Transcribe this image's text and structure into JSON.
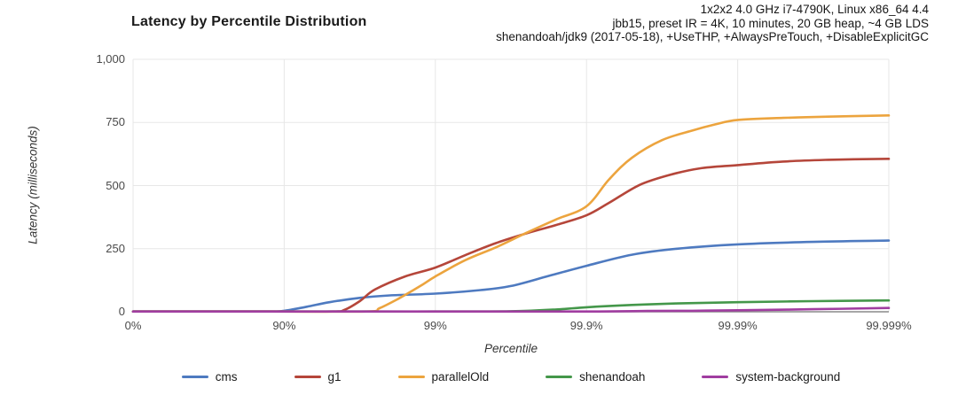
{
  "header": {
    "title": "Latency by Percentile Distribution",
    "env_lines": [
      "1x2x2 4.0 GHz i7-4790K, Linux x86_64 4.4",
      "jbb15, preset IR = 4K, 10 minutes, 20 GB heap, ~4 GB LDS",
      "shenandoah/jdk9 (2017-05-18), +UseTHP, +AlwaysPreTouch, +DisableExplicitGC"
    ]
  },
  "chart_data": {
    "type": "line",
    "title": "Latency by Percentile Distribution",
    "xlabel": "Percentile",
    "ylabel": "Latency (milliseconds)",
    "x_scale": "hdr-percentile axis, ticks equally spaced at log10(1/(1-p)) = 0..5",
    "x_ticks": [
      "0%",
      "90%",
      "99%",
      "99.9%",
      "99.99%",
      "99.999%"
    ],
    "y_ticks": [
      {
        "label": "1,000",
        "value": 1000
      },
      {
        "label": "750",
        "value": 750
      },
      {
        "label": "500",
        "value": 500
      },
      {
        "label": "250",
        "value": 250
      },
      {
        "label": "0",
        "value": 0
      }
    ],
    "ylim": [
      0,
      1000
    ],
    "grid": true,
    "legend_position": "bottom",
    "colors": {
      "grid": "#e7e7e7",
      "axis": "#8a8a8a",
      "tick_text": "#4a4a4a",
      "title_text": "#1a1a1a"
    },
    "series": [
      {
        "name": "cms",
        "color": "#4e7ac0",
        "points_x_units": "tick-index (0=0%, 1=90%, 2=99%, 3=99.9%, 4=99.99%, 5=99.999%)",
        "points": [
          [
            0,
            1
          ],
          [
            0.5,
            1
          ],
          [
            0.9,
            1
          ],
          [
            1.0,
            4
          ],
          [
            1.15,
            20
          ],
          [
            1.3,
            38
          ],
          [
            1.5,
            55
          ],
          [
            1.7,
            65
          ],
          [
            2.0,
            72
          ],
          [
            2.3,
            86
          ],
          [
            2.5,
            102
          ],
          [
            2.75,
            142
          ],
          [
            3.0,
            182
          ],
          [
            3.3,
            226
          ],
          [
            3.6,
            250
          ],
          [
            4.0,
            267
          ],
          [
            4.5,
            277
          ],
          [
            5.0,
            282
          ]
        ]
      },
      {
        "name": "g1",
        "color": "#b5463a",
        "points": [
          [
            0,
            1
          ],
          [
            0.9,
            1
          ],
          [
            1.32,
            1
          ],
          [
            1.4,
            8
          ],
          [
            1.5,
            42
          ],
          [
            1.6,
            88
          ],
          [
            1.8,
            140
          ],
          [
            2.0,
            175
          ],
          [
            2.2,
            225
          ],
          [
            2.4,
            272
          ],
          [
            2.6,
            310
          ],
          [
            2.8,
            344
          ],
          [
            3.0,
            382
          ],
          [
            3.15,
            432
          ],
          [
            3.35,
            502
          ],
          [
            3.55,
            542
          ],
          [
            3.75,
            568
          ],
          [
            4.0,
            581
          ],
          [
            4.3,
            595
          ],
          [
            4.6,
            602
          ],
          [
            5.0,
            606
          ]
        ]
      },
      {
        "name": "parallelOld",
        "color": "#eca43e",
        "points": [
          [
            0,
            1
          ],
          [
            1.0,
            1
          ],
          [
            1.55,
            1
          ],
          [
            1.63,
            14
          ],
          [
            1.75,
            50
          ],
          [
            1.9,
            102
          ],
          [
            2.0,
            140
          ],
          [
            2.2,
            205
          ],
          [
            2.4,
            255
          ],
          [
            2.6,
            312
          ],
          [
            2.8,
            366
          ],
          [
            3.0,
            418
          ],
          [
            3.15,
            525
          ],
          [
            3.3,
            610
          ],
          [
            3.5,
            680
          ],
          [
            3.7,
            718
          ],
          [
            3.85,
            742
          ],
          [
            4.0,
            760
          ],
          [
            4.3,
            768
          ],
          [
            4.6,
            773
          ],
          [
            5.0,
            778
          ]
        ]
      },
      {
        "name": "shenandoah",
        "color": "#44974a",
        "points": [
          [
            0,
            1
          ],
          [
            1.5,
            1
          ],
          [
            2.0,
            1
          ],
          [
            2.5,
            2
          ],
          [
            2.8,
            9
          ],
          [
            3.0,
            18
          ],
          [
            3.3,
            27
          ],
          [
            3.6,
            33
          ],
          [
            4.0,
            38
          ],
          [
            4.5,
            42
          ],
          [
            5.0,
            45
          ]
        ]
      },
      {
        "name": "system-background",
        "color": "#a03da0",
        "points": [
          [
            0,
            1
          ],
          [
            2.0,
            1
          ],
          [
            3.0,
            1
          ],
          [
            3.4,
            3
          ],
          [
            3.7,
            4
          ],
          [
            4.0,
            6
          ],
          [
            4.5,
            10
          ],
          [
            5.0,
            15
          ]
        ]
      }
    ],
    "values_at_ticks_ms": {
      "tick_order": [
        "0%",
        "90%",
        "99%",
        "99.9%",
        "99.99%",
        "99.999%"
      ],
      "cms": [
        0,
        4,
        72,
        182,
        267,
        282
      ],
      "g1": [
        0,
        0,
        175,
        382,
        581,
        606
      ],
      "parallelOld": [
        0,
        0,
        140,
        418,
        760,
        778
      ],
      "shenandoah": [
        0,
        0,
        1,
        18,
        38,
        45
      ],
      "system-background": [
        0,
        0,
        0,
        1,
        6,
        15
      ]
    }
  }
}
